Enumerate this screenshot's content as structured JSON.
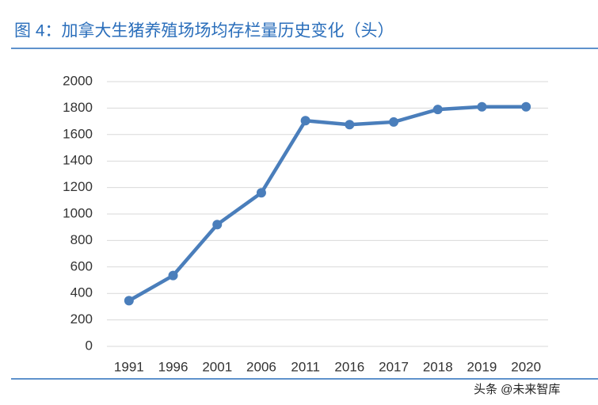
{
  "chart_data": {
    "type": "line",
    "title": "图 4：加拿大生猪养殖场场均存栏量历史变化（头）",
    "categories": [
      "1991",
      "1996",
      "2001",
      "2006",
      "2011",
      "2016",
      "2017",
      "2018",
      "2019",
      "2020"
    ],
    "values": [
      345,
      535,
      920,
      1160,
      1705,
      1675,
      1695,
      1790,
      1810,
      1810
    ],
    "color": "#4a7ebb",
    "ylim": [
      0,
      2000
    ],
    "yticks": [
      0,
      200,
      400,
      600,
      800,
      1000,
      1200,
      1400,
      1600,
      1800,
      2000
    ],
    "grid": true
  },
  "watermark": "头条 @未来智库"
}
